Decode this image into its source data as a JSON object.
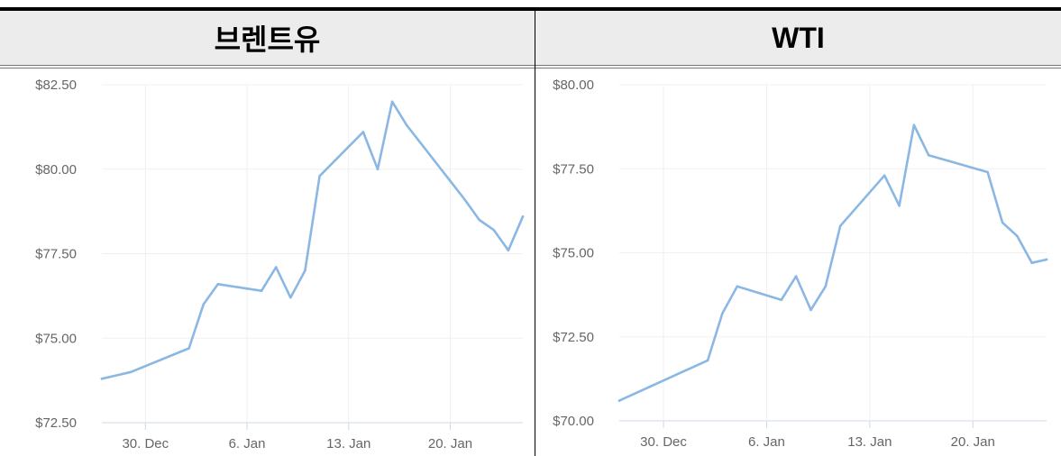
{
  "headers": {
    "left": "브렌트유",
    "right": "WTI"
  },
  "chart_data": [
    {
      "type": "line",
      "ylim": [
        72.5,
        82.5
      ],
      "yticks": [
        82.5,
        80,
        77.5,
        75,
        72.5
      ],
      "ytick_labels": [
        "$82.50",
        "$80.00",
        "$77.50",
        "$75.00",
        "$72.50"
      ],
      "xlim": [
        "2023-12-27",
        "2024-01-24"
      ],
      "xticks": [
        "2023-12-30",
        "2024-01-06",
        "2024-01-13",
        "2024-01-20"
      ],
      "xtick_labels": [
        "30. Dec",
        "6. Jan",
        "13. Jan",
        "20. Jan"
      ],
      "grid": true,
      "color": "#8ab7e3",
      "x": [
        "2023-12-27",
        "2023-12-29",
        "2024-01-02",
        "2024-01-03",
        "2024-01-04",
        "2024-01-07",
        "2024-01-08",
        "2024-01-09",
        "2024-01-10",
        "2024-01-11",
        "2024-01-14",
        "2024-01-15",
        "2024-01-16",
        "2024-01-17",
        "2024-01-21",
        "2024-01-22",
        "2024-01-23",
        "2024-01-24",
        "2024-01-25"
      ],
      "values": [
        73.8,
        74.0,
        74.7,
        76.0,
        76.6,
        76.4,
        77.1,
        76.2,
        77.0,
        79.8,
        81.1,
        80.0,
        82.0,
        81.3,
        79.1,
        78.5,
        78.2,
        77.6,
        78.6
      ]
    },
    {
      "type": "line",
      "ylim": [
        70,
        80
      ],
      "yticks": [
        80,
        77.5,
        75,
        72.5,
        70
      ],
      "ytick_labels": [
        "$80.00",
        "$77.50",
        "$75.00",
        "$72.50",
        "$70.00"
      ],
      "xlim": [
        "2023-12-27",
        "2024-01-24"
      ],
      "xticks": [
        "2023-12-30",
        "2024-01-06",
        "2024-01-13",
        "2024-01-20"
      ],
      "xtick_labels": [
        "30. Dec",
        "6. Jan",
        "13. Jan",
        "20. Jan"
      ],
      "grid": true,
      "color": "#8ab7e3",
      "x": [
        "2023-12-27",
        "2023-12-29",
        "2024-01-02",
        "2024-01-03",
        "2024-01-04",
        "2024-01-07",
        "2024-01-08",
        "2024-01-09",
        "2024-01-10",
        "2024-01-11",
        "2024-01-14",
        "2024-01-15",
        "2024-01-16",
        "2024-01-17",
        "2024-01-21",
        "2024-01-22",
        "2024-01-23",
        "2024-01-24",
        "2024-01-25"
      ],
      "values": [
        70.6,
        71.0,
        71.8,
        73.2,
        74.0,
        73.6,
        74.3,
        73.3,
        74.0,
        75.8,
        77.3,
        76.4,
        78.8,
        77.9,
        77.4,
        75.9,
        75.5,
        74.7,
        74.8
      ]
    }
  ]
}
